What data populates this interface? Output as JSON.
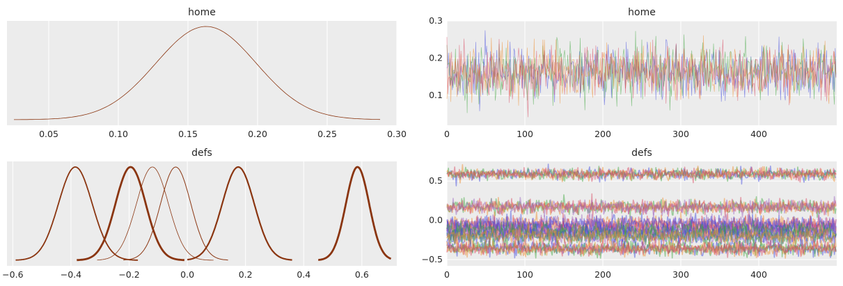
{
  "colors": {
    "background": "#ffffff",
    "panel": "#ececec",
    "grid": "#ffffff",
    "kde": "#8a3510",
    "chains": [
      "#3a43e0",
      "#3aa63a",
      "#f08a28",
      "#d9405a",
      "#9b5fc0"
    ]
  },
  "chart_data": [
    {
      "type": "line",
      "subtype": "kde",
      "title": "home",
      "xlim": [
        0.02,
        0.3
      ],
      "xticks": [
        0.05,
        0.1,
        0.15,
        0.2,
        0.25,
        0.3
      ],
      "xtick_labels": [
        "0.05",
        "0.10",
        "0.15",
        "0.20",
        "0.25",
        "0.30"
      ],
      "yticks_shown": false,
      "series": [
        {
          "mean": 0.163,
          "sd": 0.036,
          "range": [
            0.025,
            0.288
          ],
          "lw": 0.8
        }
      ]
    },
    {
      "type": "line",
      "subtype": "trace",
      "title": "home",
      "xlim": [
        0,
        500
      ],
      "ylim": [
        0.02,
        0.3
      ],
      "xticks": [
        0,
        100,
        200,
        300,
        400
      ],
      "xtick_labels": [
        "0",
        "100",
        "200",
        "300",
        "400"
      ],
      "yticks": [
        0.1,
        0.2,
        0.3
      ],
      "ytick_labels": [
        "0.1",
        "0.2",
        "0.3"
      ],
      "draws": 500,
      "chains": 4,
      "params": [
        {
          "mean": 0.163,
          "sd": 0.036
        }
      ],
      "line_width": 0.7,
      "opacity": 0.55
    },
    {
      "type": "line",
      "subtype": "kde",
      "title": "defs",
      "xlim": [
        -0.62,
        0.72
      ],
      "xticks": [
        -0.6,
        -0.4,
        -0.2,
        0.0,
        0.2,
        0.4,
        0.6
      ],
      "xtick_labels": [
        "−0.6",
        "−0.4",
        "−0.2",
        "0.0",
        "0.2",
        "0.4",
        "0.6"
      ],
      "yticks_shown": false,
      "series": [
        {
          "mean": -0.385,
          "sd": 0.058,
          "range": [
            -0.59,
            -0.17
          ],
          "lw": 1.8
        },
        {
          "mean": -0.195,
          "sd": 0.052,
          "range": [
            -0.38,
            -0.01
          ],
          "lw": 2.8
        },
        {
          "mean": -0.12,
          "sd": 0.055,
          "range": [
            -0.31,
            0.09
          ],
          "lw": 0.8
        },
        {
          "mean": -0.04,
          "sd": 0.052,
          "range": [
            -0.22,
            0.14
          ],
          "lw": 1.0
        },
        {
          "mean": 0.175,
          "sd": 0.055,
          "range": [
            0.0,
            0.36
          ],
          "lw": 2.2
        },
        {
          "mean": 0.585,
          "sd": 0.04,
          "range": [
            0.45,
            0.7
          ],
          "lw": 2.8
        }
      ]
    },
    {
      "type": "line",
      "subtype": "trace",
      "title": "defs",
      "xlim": [
        0,
        500
      ],
      "ylim": [
        -0.58,
        0.75
      ],
      "xticks": [
        0,
        100,
        200,
        300,
        400
      ],
      "xtick_labels": [
        "0",
        "100",
        "200",
        "300",
        "400"
      ],
      "yticks": [
        0.5,
        0.0,
        -0.5
      ],
      "ytick_labels": [
        "0.5",
        "0.0",
        "−0.5"
      ],
      "draws": 500,
      "chains": 4,
      "params": [
        {
          "mean": 0.59,
          "sd": 0.035
        },
        {
          "mean": 0.17,
          "sd": 0.045
        },
        {
          "mean": -0.05,
          "sd": 0.055
        },
        {
          "mean": -0.13,
          "sd": 0.055
        },
        {
          "mean": -0.2,
          "sd": 0.055
        },
        {
          "mean": -0.36,
          "sd": 0.045
        }
      ],
      "line_width": 1.6,
      "opacity": 0.45
    }
  ]
}
